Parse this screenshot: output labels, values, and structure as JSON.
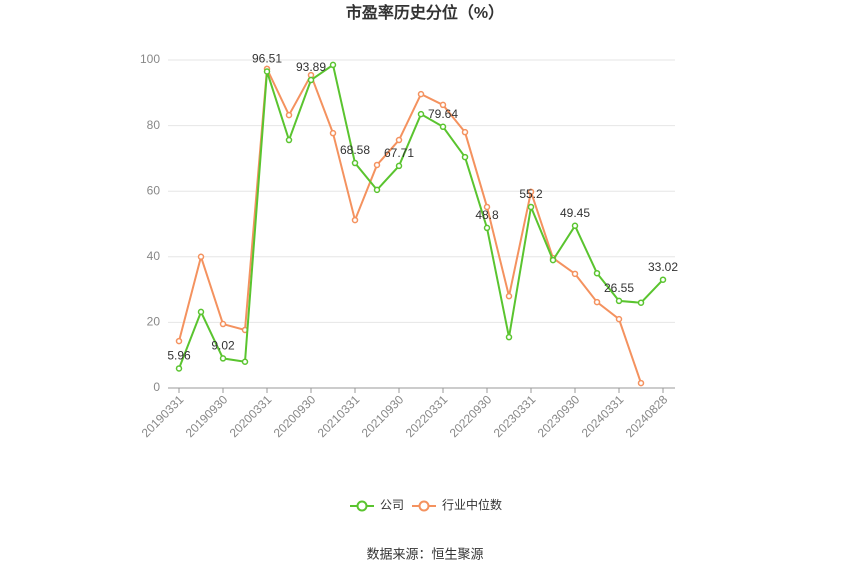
{
  "chart_data": {
    "type": "line",
    "title": "市盈率历史分位（%）",
    "categories": [
      "20190331",
      null,
      "20190930",
      null,
      "20200331",
      null,
      "20200930",
      null,
      "20210331",
      null,
      "20210930",
      null,
      "20220331",
      null,
      "20220930",
      null,
      "20230331",
      null,
      "20230930",
      null,
      "20240331",
      null,
      "20240828"
    ],
    "series": [
      {
        "name": "公司",
        "color": "#5ac42f",
        "values": [
          5.96,
          23.2,
          9.02,
          8,
          96.51,
          75.6,
          93.89,
          98.5,
          68.58,
          60.4,
          67.71,
          83.5,
          79.64,
          70.4,
          48.8,
          15.5,
          55.2,
          39,
          49.45,
          35,
          26.55,
          26,
          33.02
        ]
      },
      {
        "name": "行业中位数",
        "color": "#f4925f",
        "values": [
          14.3,
          40,
          19.5,
          17.7,
          97.3,
          83.2,
          95.4,
          77.7,
          51.2,
          68,
          75.6,
          89.6,
          86.3,
          78,
          55.2,
          28,
          59.8,
          39.6,
          34.8,
          26.2,
          21,
          1.5,
          null
        ]
      }
    ],
    "ylim": [
      0,
      100
    ],
    "yticks": [
      0,
      20,
      40,
      60,
      80,
      100
    ],
    "grid": true,
    "legend": "bottom",
    "source": "数据来源：恒生聚源"
  }
}
